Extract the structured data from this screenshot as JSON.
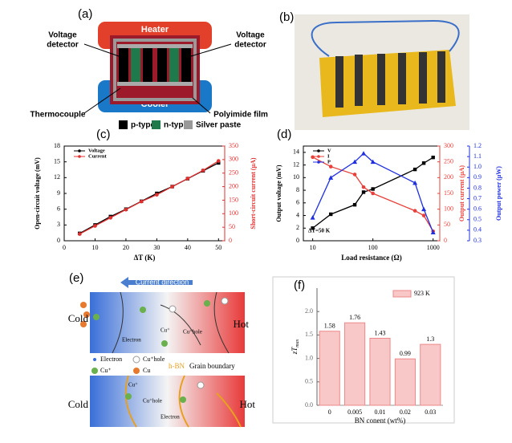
{
  "diagram_a": {
    "panel_label": "(a)",
    "heater": "Heater",
    "cooler": "Cooler",
    "left_detector": [
      "Voltage",
      "detector"
    ],
    "right_detector": [
      "Voltage",
      "detector"
    ],
    "thermocouple": "Thermocouple",
    "film": "Polyimide film",
    "legend": [
      "p-type",
      "n-type",
      "Silver paste"
    ]
  },
  "photo_b": {
    "panel_label": "(b)"
  },
  "diagram_e": {
    "panel_label": "(e)",
    "current_direction": "Current direction",
    "cold_top": "Cold",
    "hot_top": "Hot",
    "cold_bottom": "Cold",
    "hot_bottom": "Hot",
    "top_cu_plus": "Cu⁺",
    "top_hole": "Cu⁺hole",
    "top_electron": "Electron",
    "legend": [
      "Electron",
      "Cu⁺hole",
      "Cu⁺",
      "Cu"
    ],
    "hbn": "h-BN",
    "grain_boundary": "Grain boundary",
    "bottom_cu_plus": "Cu⁺",
    "bottom_hole": "Cu⁺hole",
    "bottom_electron": "Electron"
  },
  "chart_data": [
    {
      "type": "line",
      "panel_label": "(c)",
      "xlabel": "ΔT (K)",
      "ylabel": "Open-circuit voltage (mV)",
      "y2label": "Short-circuit current (μA)",
      "y2color": "#e03030",
      "xlim": [
        0,
        52
      ],
      "xticks": [
        0,
        10,
        20,
        30,
        40,
        50
      ],
      "ylim": [
        0,
        18
      ],
      "yticks": [
        0,
        3,
        6,
        9,
        12,
        15,
        18
      ],
      "y2lim": [
        0,
        350
      ],
      "y2ticks": [
        0,
        50,
        100,
        150,
        200,
        250,
        300,
        350
      ],
      "x": [
        5,
        10,
        15,
        20,
        25,
        30,
        35,
        40,
        45,
        50
      ],
      "legend": "upper left",
      "series": [
        {
          "name": "Voltage",
          "color": "#000000",
          "marker": "square",
          "values": [
            1.4,
            3.0,
            4.6,
            6.0,
            7.5,
            9.0,
            10.3,
            11.8,
            13.3,
            14.8
          ]
        },
        {
          "name": "Current",
          "color": "#e03030",
          "marker": "circle",
          "axis": "y2",
          "values": [
            25,
            55,
            85,
            115,
            145,
            170,
            200,
            230,
            260,
            295
          ]
        }
      ]
    },
    {
      "type": "line",
      "panel_label": "(d)",
      "xlabel": "Load resistance (Ω)",
      "ylabel": "Output voltage (mV)",
      "y2label": "Output current (μA)",
      "y3label": "Output power (μW)",
      "y2color": "#e8403a",
      "y3color": "#1f2fe0",
      "annotation": "ΔT=50 K",
      "xscale": "log",
      "xlim": [
        7,
        1290
      ],
      "xticks": [
        10,
        100,
        1000
      ],
      "ylim": [
        0,
        15
      ],
      "yticks": [
        0,
        2,
        4,
        6,
        8,
        10,
        12,
        14
      ],
      "y2lim": [
        0,
        300
      ],
      "y2ticks": [
        0,
        50,
        100,
        150,
        200,
        250,
        300
      ],
      "y3lim": [
        0.3,
        1.2
      ],
      "y3ticks": [
        0.3,
        0.4,
        0.5,
        0.6,
        0.7,
        0.8,
        0.9,
        {
          "value": 1.0,
          "label": "1.0"
        },
        1.1,
        1.2
      ],
      "x": [
        10,
        20,
        50,
        70,
        100,
        500,
        700,
        1000
      ],
      "legend": "upper left",
      "series": [
        {
          "name": "V",
          "color": "#000000",
          "marker": "square",
          "values": [
            2.0,
            4.2,
            5.7,
            7.7,
            8.2,
            11.3,
            12.3,
            13.2
          ]
        },
        {
          "name": "I",
          "color": "#e8403a",
          "marker": "circle",
          "axis": "y2",
          "values": [
            265,
            235,
            210,
            170,
            150,
            95,
            80,
            30
          ]
        },
        {
          "name": "P",
          "color": "#1f2fe0",
          "marker": "triangle",
          "axis": "y3",
          "values": [
            0.52,
            0.9,
            1.05,
            1.13,
            1.05,
            0.85,
            0.6,
            0.38
          ]
        }
      ]
    },
    {
      "type": "bar",
      "panel_label": "(f)",
      "xlabel": "BN conent (wt%)",
      "ylabel": "zT",
      "ylabel_sub": "max",
      "categories": [
        "0",
        "0.005",
        "0.01",
        "0.02",
        "0.03"
      ],
      "series": [
        {
          "name": "923 K",
          "color": "#f8c8c8",
          "values": [
            1.58,
            1.76,
            1.43,
            0.99,
            1.3
          ]
        }
      ],
      "ylim": [
        0,
        2.5
      ],
      "yticks": [
        {
          "value": 0,
          "label": "0.0"
        },
        0.5,
        {
          "value": 1,
          "label": "1.0"
        },
        1.5,
        {
          "value": 2,
          "label": "2.0"
        }
      ],
      "legend": "upper right"
    }
  ]
}
